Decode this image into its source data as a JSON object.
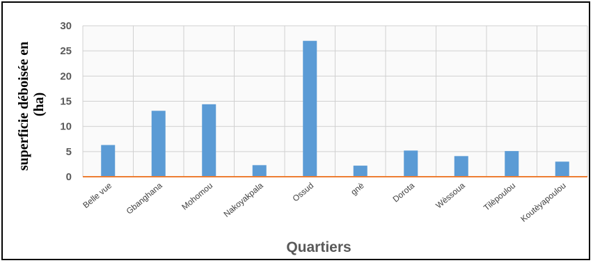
{
  "chart_data": {
    "type": "bar",
    "categories": [
      "Belle vue",
      "Gbanghana",
      "Mohomou",
      "Nakoyakpala",
      "Ossud",
      "gnè",
      "Dorota",
      "Wèssoua",
      "Tilèpoulou",
      "Koutèyapoulou"
    ],
    "values": [
      6.3,
      13.1,
      14.4,
      2.3,
      27.0,
      2.2,
      5.2,
      4.1,
      5.1,
      3.0
    ],
    "xlabel": "Quartiers",
    "ylabel": "superficie déboisée en (ha)",
    "ylim": [
      0,
      30
    ],
    "yticks": [
      "0",
      "5",
      "10",
      "15",
      "20",
      "25",
      "30"
    ],
    "grid": true,
    "colors": {
      "bar": "#5B9BD5",
      "baseline": "#ED7D31",
      "grid": "#D0D0D0"
    }
  }
}
